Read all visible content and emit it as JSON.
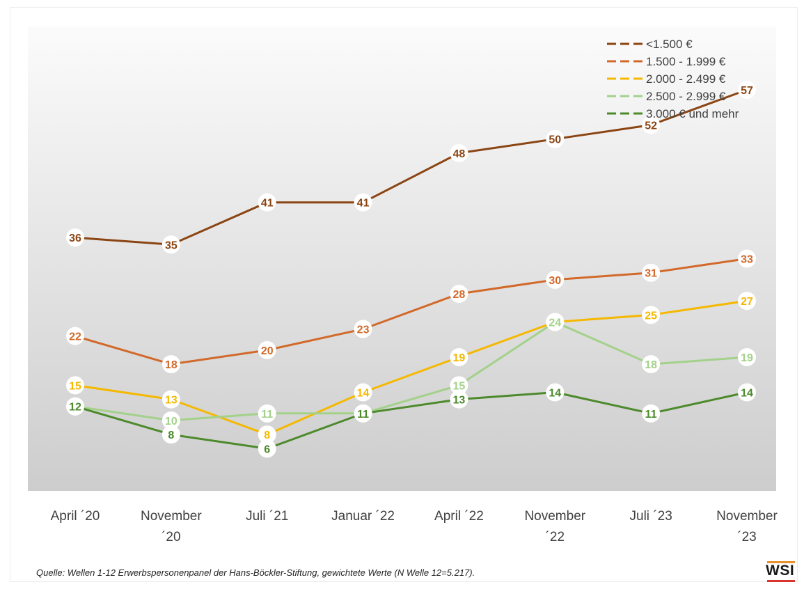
{
  "chart_data": {
    "type": "line",
    "categories": [
      "April ´20",
      "November ´20",
      "Juli ´21",
      "Januar ´22",
      "April ´22",
      "November ´22",
      "Juli ´23",
      "November ´23"
    ],
    "series": [
      {
        "name": "<1.500 €",
        "color": "#8b4513",
        "values": [
          36,
          35,
          41,
          41,
          48,
          50,
          52,
          57
        ]
      },
      {
        "name": "1.500 - 1.999 €",
        "color": "#d2692a",
        "values": [
          22,
          18,
          20,
          23,
          28,
          30,
          31,
          33
        ]
      },
      {
        "name": "2.000 - 2.499 €",
        "color": "#f5b800",
        "values": [
          15,
          13,
          8,
          14,
          19,
          24,
          25,
          27
        ]
      },
      {
        "name": "2.500 - 2.999 €",
        "color": "#a3d18a",
        "values": [
          12,
          10,
          11,
          11,
          15,
          24,
          18,
          19
        ]
      },
      {
        "name": "3.000 € und mehr",
        "color": "#4c8a2c",
        "values": [
          12,
          8,
          6,
          11,
          13,
          14,
          11,
          14
        ]
      }
    ],
    "ylim": [
      0,
      66
    ],
    "legend_position": "top-right",
    "data_labels": true,
    "grid": false
  },
  "source_note": "Quelle: Wellen 1-12 Erwerbspersonenpanel der Hans-Böckler-Stiftung, gewichtete Werte (N Welle 12=5.217).",
  "logo_text": "WSI"
}
